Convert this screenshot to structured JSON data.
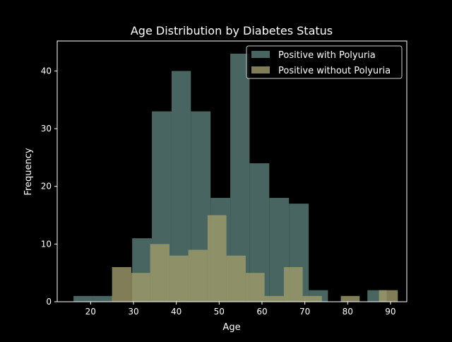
{
  "chart_data": {
    "type": "histogram",
    "title": "Age Distribution by Diabetes Status",
    "xlabel": "Age",
    "ylabel": "Frequency",
    "xlim": [
      12.2,
      93.8
    ],
    "ylim": [
      0,
      45.2
    ],
    "xticks": [
      20,
      30,
      40,
      50,
      60,
      70,
      80,
      90
    ],
    "yticks": [
      0,
      10,
      20,
      30,
      40
    ],
    "legend_position": "top-right",
    "series": [
      {
        "name": "Positive with Polyuria",
        "color": "#4e6e69",
        "bins": [
          {
            "x0": 16,
            "x1": 20.6,
            "count": 1
          },
          {
            "x0": 20.6,
            "x1": 25.1,
            "count": 1
          },
          {
            "x0": 25.1,
            "x1": 29.7,
            "count": 0
          },
          {
            "x0": 29.7,
            "x1": 34.3,
            "count": 11
          },
          {
            "x0": 34.3,
            "x1": 38.9,
            "count": 33
          },
          {
            "x0": 38.9,
            "x1": 43.4,
            "count": 40
          },
          {
            "x0": 43.4,
            "x1": 48.0,
            "count": 33
          },
          {
            "x0": 48.0,
            "x1": 52.6,
            "count": 18
          },
          {
            "x0": 52.6,
            "x1": 57.1,
            "count": 43
          },
          {
            "x0": 57.1,
            "x1": 61.7,
            "count": 24
          },
          {
            "x0": 61.7,
            "x1": 66.3,
            "count": 18
          },
          {
            "x0": 66.3,
            "x1": 70.9,
            "count": 17
          },
          {
            "x0": 70.9,
            "x1": 75.4,
            "count": 2
          },
          {
            "x0": 75.4,
            "x1": 80.0,
            "count": 0
          },
          {
            "x0": 80.0,
            "x1": 84.6,
            "count": 0
          },
          {
            "x0": 84.6,
            "x1": 89.1,
            "count": 2
          },
          {
            "x0": 89.1,
            "x1": 93.7,
            "count": 0
          }
        ]
      },
      {
        "name": "Positive without Polyuria",
        "color": "#9d9a6a",
        "bins": [
          {
            "x0": 25,
            "x1": 29.5,
            "count": 6
          },
          {
            "x0": 29.5,
            "x1": 33.9,
            "count": 5
          },
          {
            "x0": 33.9,
            "x1": 38.4,
            "count": 10
          },
          {
            "x0": 38.4,
            "x1": 42.8,
            "count": 8
          },
          {
            "x0": 42.8,
            "x1": 47.3,
            "count": 9
          },
          {
            "x0": 47.3,
            "x1": 51.7,
            "count": 15
          },
          {
            "x0": 51.7,
            "x1": 56.2,
            "count": 8
          },
          {
            "x0": 56.2,
            "x1": 60.6,
            "count": 5
          },
          {
            "x0": 60.6,
            "x1": 65.1,
            "count": 1
          },
          {
            "x0": 65.1,
            "x1": 69.5,
            "count": 6
          },
          {
            "x0": 69.5,
            "x1": 74.0,
            "count": 1
          },
          {
            "x0": 74.0,
            "x1": 78.4,
            "count": 0
          },
          {
            "x0": 78.4,
            "x1": 82.8,
            "count": 1
          },
          {
            "x0": 82.8,
            "x1": 87.3,
            "count": 0
          },
          {
            "x0": 87.3,
            "x1": 91.7,
            "count": 2
          }
        ]
      }
    ]
  }
}
